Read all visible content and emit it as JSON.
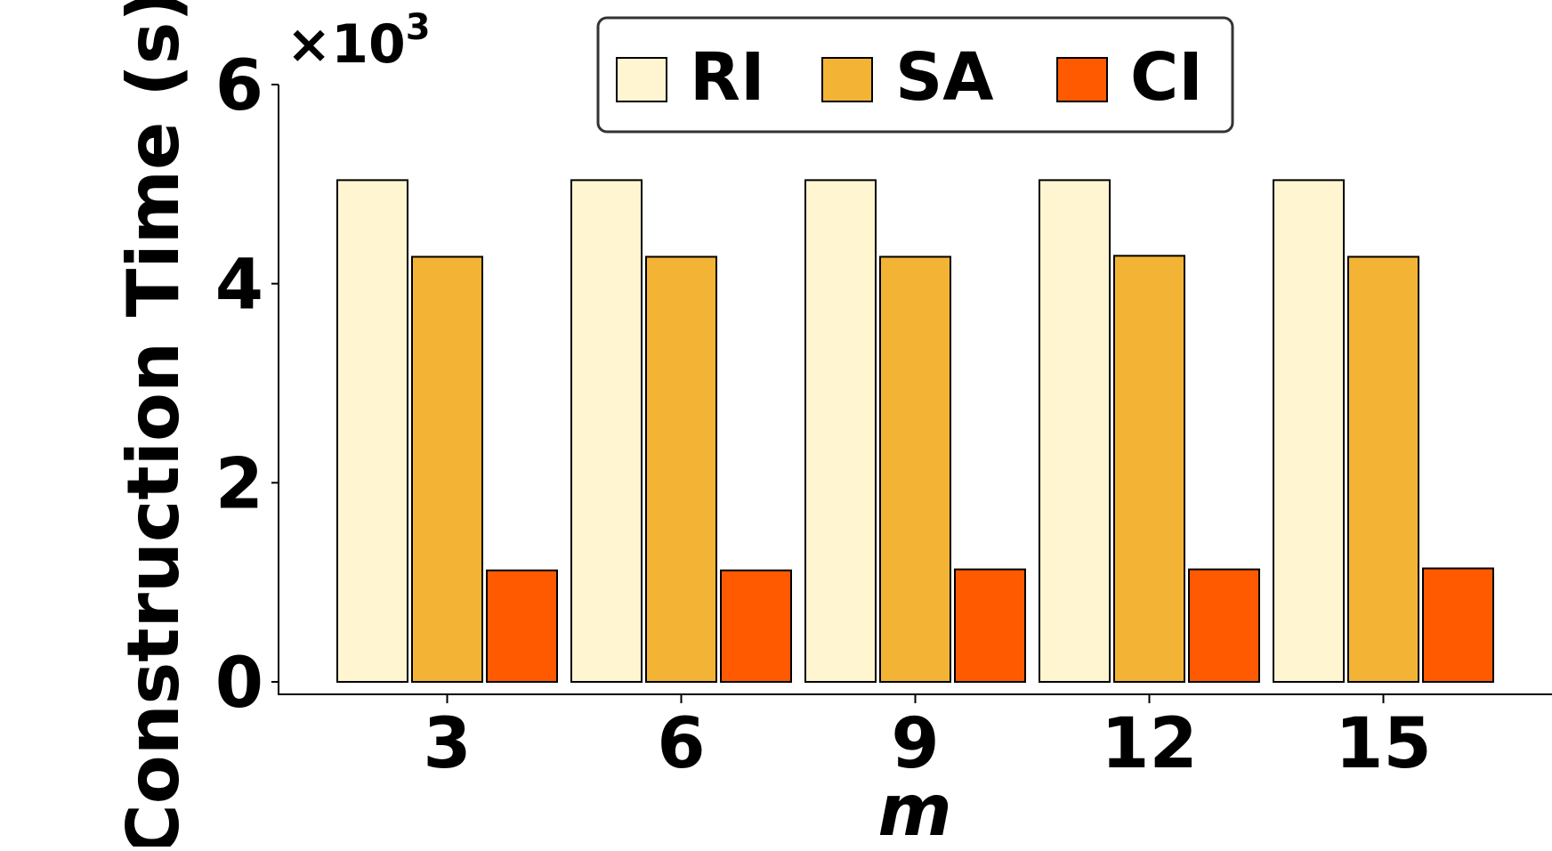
{
  "chart_data": {
    "type": "bar",
    "categories": [
      "3",
      "6",
      "9",
      "12",
      "15"
    ],
    "series": [
      {
        "name": "RI",
        "color": "#FFF5D1",
        "values": [
          5.04,
          5.04,
          5.04,
          5.04,
          5.04
        ]
      },
      {
        "name": "SA",
        "color": "#F3B436",
        "values": [
          4.27,
          4.27,
          4.27,
          4.28,
          4.27
        ]
      },
      {
        "name": "CI",
        "color": "#FF5A00",
        "values": [
          1.12,
          1.12,
          1.13,
          1.13,
          1.14
        ]
      }
    ],
    "xlabel": "m",
    "ylabel": "Construction Time (s)",
    "y_multiplier_prefix": "×10",
    "y_multiplier_exponent": "3",
    "ylim": [
      0,
      6
    ],
    "yticks": [
      0,
      2,
      4,
      6
    ],
    "grid": false,
    "legend_position": "top-center"
  }
}
